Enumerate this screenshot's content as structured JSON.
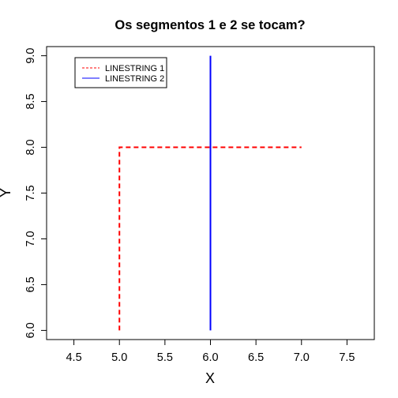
{
  "chart_data": {
    "type": "line",
    "title": "Os segmentos 1 e 2 se tocam?",
    "xlabel": "X",
    "ylabel": "Y",
    "xlim": [
      4.2,
      7.8
    ],
    "ylim": [
      5.9,
      9.1
    ],
    "xticks": [
      "4.5",
      "5.0",
      "5.5",
      "6.0",
      "6.5",
      "7.0",
      "7.5"
    ],
    "yticks": [
      "6.0",
      "6.5",
      "7.0",
      "7.5",
      "8.0",
      "8.5",
      "9.0"
    ],
    "grid": false,
    "legend_position": "top-left",
    "series": [
      {
        "name": "LINESTRING 1",
        "color": "#ff0000",
        "style": "dashed",
        "points": [
          [
            5.0,
            6.0
          ],
          [
            5.0,
            8.0
          ],
          [
            7.0,
            8.0
          ]
        ]
      },
      {
        "name": "LINESTRING 2",
        "color": "#0000ff",
        "style": "solid",
        "points": [
          [
            6.0,
            6.0
          ],
          [
            6.0,
            9.0
          ]
        ]
      }
    ]
  }
}
